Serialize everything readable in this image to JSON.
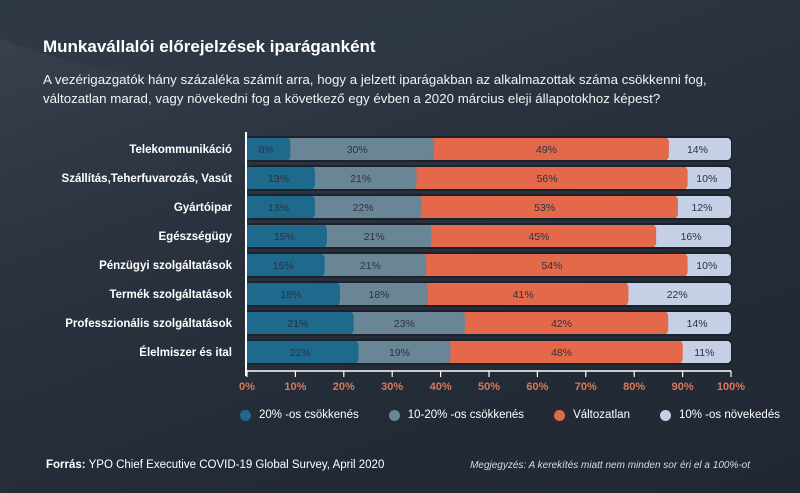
{
  "title": "Munkavállalói előrejelzések iparáganként",
  "subtitle_line1": "A vezérigazgatók hány százaléka számít arra, hogy a jelzett iparágakban az alkalmazottak száma csökkenni fog,",
  "subtitle_line2": "változatlan marad, vagy növekedni fog a következő egy évben a 2020 március eleji állapotokhoz képest?",
  "footer": {
    "source_label": "Forrás:",
    "source_text": "YPO Chief Executive COVID-19 Global Survey, April 2020",
    "note": "Megjegyzés: A kerekítés miatt nem minden sor éri el a 100%-ot"
  },
  "chart_data": {
    "type": "bar",
    "orientation": "horizontal",
    "stacked": true,
    "title": "Munkavállalói előrejelzések iparáganként",
    "xlabel": "",
    "ylabel": "",
    "xlim": [
      0,
      100
    ],
    "grid": false,
    "legend_position": "bottom",
    "categories": [
      "Telekommunikáció",
      "Szállítás,Teherfuvarozás, Vasút",
      "Gyártóipar",
      "Egészségügy",
      "Pénzügyi szolgáltatások",
      "Termék szolgáltatások",
      "Professzionális szolgáltatások",
      "Élelmiszer és ital"
    ],
    "x_ticks": [
      "0%",
      "10%",
      "20%",
      "30%",
      "40%",
      "50%",
      "60%",
      "70%",
      "80%",
      "90%",
      "100%"
    ],
    "series": [
      {
        "name": "20% -os csökkenés",
        "color": "#1d6a8c",
        "values": [
          8,
          13,
          13,
          15,
          15,
          18,
          21,
          22
        ]
      },
      {
        "name": "10-20% -os csökkenés",
        "color": "#6a8696",
        "values": [
          30,
          21,
          22,
          21,
          21,
          18,
          23,
          19
        ]
      },
      {
        "name": "Változatlan",
        "color": "#e4694a",
        "values": [
          49,
          56,
          53,
          45,
          54,
          41,
          42,
          48
        ]
      },
      {
        "name": "10% -os növekedés",
        "color": "#c5d0e6",
        "values": [
          14,
          10,
          12,
          16,
          10,
          22,
          14,
          11
        ]
      }
    ]
  },
  "colors": {
    "background": "#252d3a",
    "axis": "#ffffff",
    "tick_label": "#d9785a",
    "segment_text": "#2a3240"
  }
}
